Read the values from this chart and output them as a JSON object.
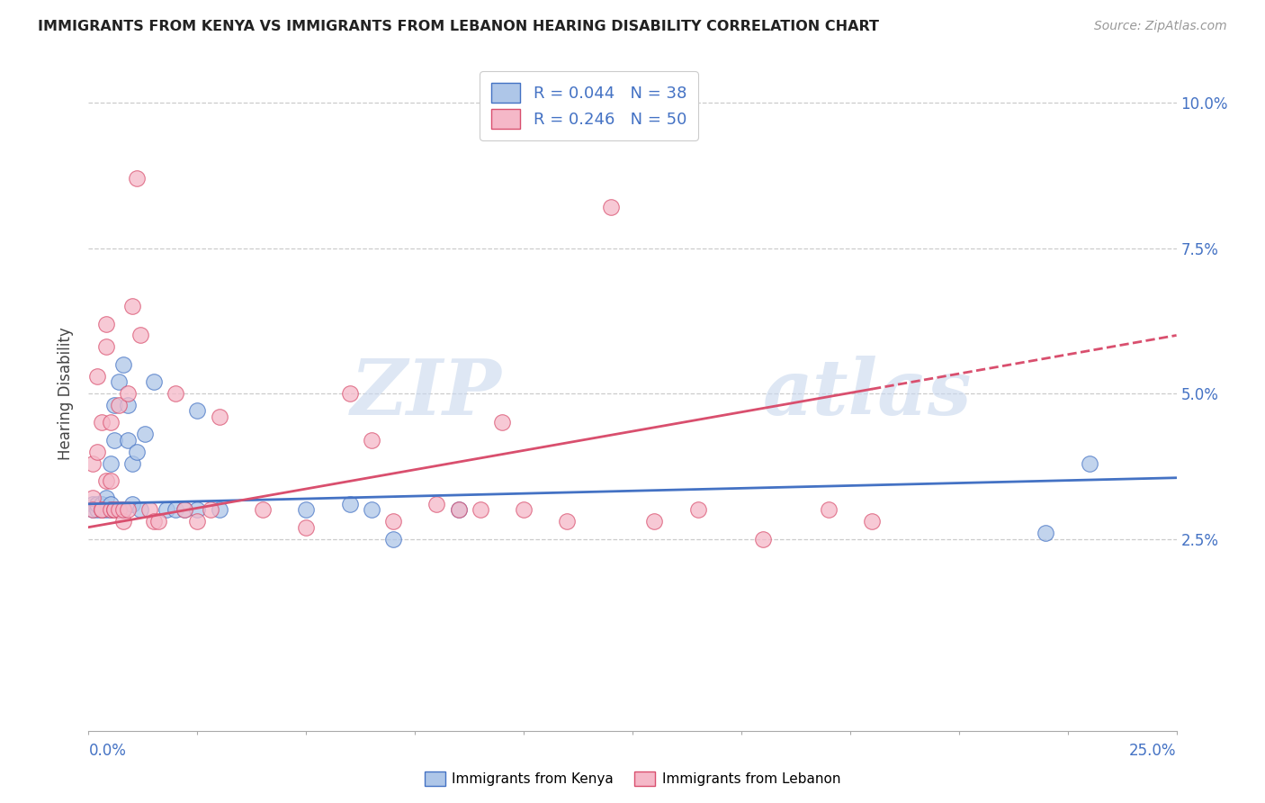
{
  "title": "IMMIGRANTS FROM KENYA VS IMMIGRANTS FROM LEBANON HEARING DISABILITY CORRELATION CHART",
  "source": "Source: ZipAtlas.com",
  "ylabel": "Hearing Disability",
  "ytick_values": [
    0.025,
    0.05,
    0.075,
    0.1
  ],
  "xlim": [
    0.0,
    0.25
  ],
  "ylim": [
    -0.008,
    0.108
  ],
  "kenya_R": 0.044,
  "kenya_N": 38,
  "lebanon_R": 0.246,
  "lebanon_N": 50,
  "kenya_color": "#aec6e8",
  "lebanon_color": "#f5b8c8",
  "kenya_line_color": "#4472c4",
  "lebanon_line_color": "#d94f6e",
  "watermark_zip": "ZIP",
  "watermark_atlas": "atlas",
  "kenya_x": [
    0.001,
    0.001,
    0.002,
    0.002,
    0.003,
    0.003,
    0.004,
    0.004,
    0.005,
    0.005,
    0.005,
    0.006,
    0.006,
    0.007,
    0.007,
    0.008,
    0.008,
    0.009,
    0.009,
    0.01,
    0.01,
    0.011,
    0.012,
    0.013,
    0.015,
    0.018,
    0.02,
    0.022,
    0.025,
    0.025,
    0.03,
    0.05,
    0.06,
    0.065,
    0.07,
    0.085,
    0.22,
    0.23
  ],
  "kenya_y": [
    0.031,
    0.03,
    0.03,
    0.031,
    0.031,
    0.03,
    0.032,
    0.03,
    0.038,
    0.031,
    0.03,
    0.042,
    0.048,
    0.052,
    0.03,
    0.055,
    0.03,
    0.048,
    0.042,
    0.038,
    0.031,
    0.04,
    0.03,
    0.043,
    0.052,
    0.03,
    0.03,
    0.03,
    0.047,
    0.03,
    0.03,
    0.03,
    0.031,
    0.03,
    0.025,
    0.03,
    0.026,
    0.038
  ],
  "lebanon_x": [
    0.001,
    0.001,
    0.001,
    0.002,
    0.002,
    0.003,
    0.003,
    0.003,
    0.004,
    0.004,
    0.004,
    0.005,
    0.005,
    0.005,
    0.006,
    0.006,
    0.007,
    0.007,
    0.008,
    0.008,
    0.009,
    0.009,
    0.01,
    0.011,
    0.012,
    0.014,
    0.015,
    0.016,
    0.02,
    0.022,
    0.025,
    0.028,
    0.03,
    0.04,
    0.05,
    0.06,
    0.065,
    0.07,
    0.08,
    0.085,
    0.09,
    0.095,
    0.1,
    0.11,
    0.12,
    0.13,
    0.14,
    0.155,
    0.17,
    0.18
  ],
  "lebanon_y": [
    0.038,
    0.032,
    0.03,
    0.053,
    0.04,
    0.045,
    0.03,
    0.03,
    0.062,
    0.035,
    0.058,
    0.03,
    0.045,
    0.035,
    0.03,
    0.03,
    0.03,
    0.048,
    0.028,
    0.03,
    0.03,
    0.05,
    0.065,
    0.087,
    0.06,
    0.03,
    0.028,
    0.028,
    0.05,
    0.03,
    0.028,
    0.03,
    0.046,
    0.03,
    0.027,
    0.05,
    0.042,
    0.028,
    0.031,
    0.03,
    0.03,
    0.045,
    0.03,
    0.028,
    0.082,
    0.028,
    0.03,
    0.025,
    0.03,
    0.028
  ]
}
